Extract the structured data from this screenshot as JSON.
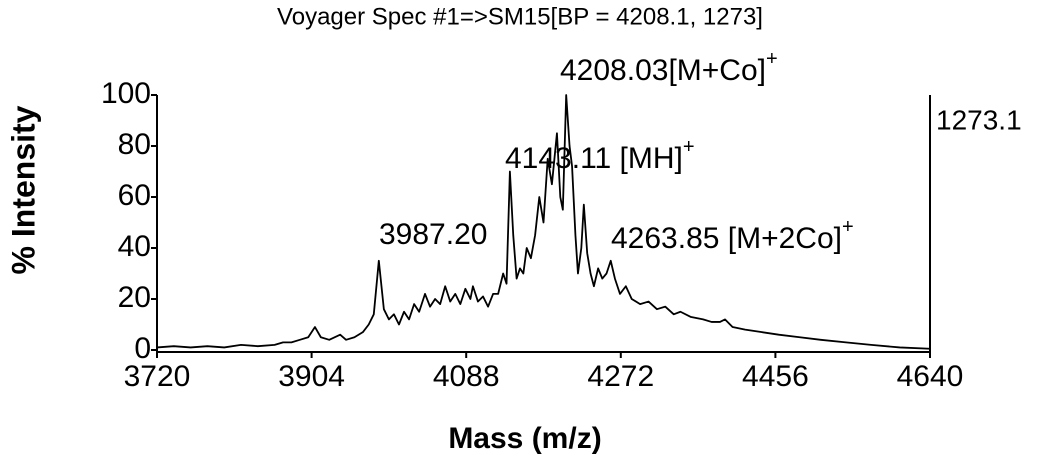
{
  "chart_data": {
    "type": "line",
    "title": "Voyager Spec #1=>SM15[BP = 4208.1, 1273]",
    "x_label": "Mass (m/z)",
    "y_label": "% Intensity",
    "right_label": "1273.1",
    "color": "#000000",
    "xlim": [
      3720,
      4640
    ],
    "xticks": [
      3720,
      3904,
      4088,
      4272,
      4456,
      4640
    ],
    "ylim": [
      0,
      100
    ],
    "yticks": [
      0,
      20,
      40,
      60,
      80,
      100
    ],
    "x": [
      3720,
      3740,
      3760,
      3780,
      3800,
      3820,
      3840,
      3860,
      3870,
      3880,
      3890,
      3900,
      3908,
      3915,
      3925,
      3938,
      3945,
      3955,
      3965,
      3972,
      3978,
      3984,
      3990,
      3996,
      4002,
      4008,
      4014,
      4020,
      4026,
      4032,
      4039,
      4045,
      4051,
      4057,
      4063,
      4069,
      4075,
      4081,
      4087,
      4093,
      4096,
      4102,
      4108,
      4114,
      4120,
      4126,
      4132,
      4136,
      4140,
      4144,
      4148,
      4152,
      4156,
      4160,
      4165,
      4170,
      4175,
      4180,
      4185,
      4190,
      4196,
      4200,
      4203,
      4207,
      4211,
      4214,
      4218,
      4221,
      4225,
      4228,
      4232,
      4236,
      4240,
      4245,
      4250,
      4255,
      4260,
      4265,
      4271,
      4278,
      4285,
      4295,
      4305,
      4315,
      4325,
      4335,
      4343,
      4355,
      4370,
      4380,
      4390,
      4396,
      4405,
      4420,
      4440,
      4460,
      4485,
      4510,
      4540,
      4570,
      4604,
      4640
    ],
    "values": [
      1,
      1.5,
      1,
      1.5,
      1,
      2,
      1.5,
      2,
      3,
      3,
      4,
      5,
      9,
      5,
      4,
      6,
      4,
      5,
      7,
      10,
      14,
      35,
      16,
      12,
      14,
      10,
      15,
      12,
      18,
      15,
      22,
      17,
      20,
      18,
      25,
      19,
      22,
      18,
      24,
      20,
      25,
      19,
      21,
      17,
      22,
      22,
      30,
      26,
      70,
      45,
      28,
      32,
      30,
      40,
      36,
      45,
      60,
      50,
      75,
      65,
      85,
      60,
      55,
      100,
      80,
      72,
      45,
      30,
      40,
      57,
      38,
      30,
      25,
      32,
      28,
      30,
      35,
      28,
      22,
      25,
      20,
      18,
      19,
      16,
      17,
      14,
      15,
      13,
      12,
      11,
      11,
      12,
      9,
      8,
      7,
      6,
      5,
      4,
      3,
      2,
      1,
      0.5
    ],
    "annotations": [
      {
        "text": "3987.20"
      },
      {
        "text": "4143.11 [MH]",
        "sup": "+"
      },
      {
        "text": "4208.03[M+Co]",
        "sup": "+"
      },
      {
        "text": "4263.85 [M+2Co]",
        "sup": "+"
      }
    ]
  }
}
